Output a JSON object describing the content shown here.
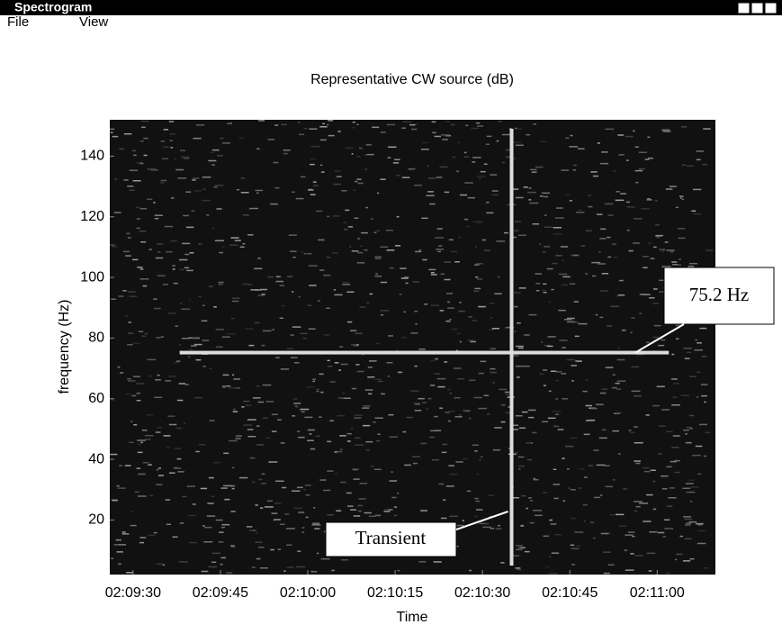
{
  "window": {
    "title": "Spectrogram",
    "menu": [
      "File",
      "View"
    ]
  },
  "chart_data": {
    "type": "spectrogram",
    "title": "Representative CW source (dB)",
    "xlabel": "Time",
    "ylabel": "frequency (Hz)",
    "xlim": [
      7766,
      7870
    ],
    "ylim": [
      2,
      152
    ],
    "xticks": [
      {
        "value": 7770,
        "label": "02:09:30"
      },
      {
        "value": 7785,
        "label": "02:09:45"
      },
      {
        "value": 7800,
        "label": "02:10:00"
      },
      {
        "value": 7815,
        "label": "02:10:15"
      },
      {
        "value": 7830,
        "label": "02:10:30"
      },
      {
        "value": 7845,
        "label": "02:10:45"
      },
      {
        "value": 7860,
        "label": "02:11:00"
      }
    ],
    "yticks": [
      20,
      40,
      60,
      80,
      100,
      120,
      140
    ],
    "annotations": [
      {
        "text": "75.2 Hz",
        "y": 75.2
      },
      {
        "text": "Transient",
        "x": 7835
      }
    ]
  }
}
